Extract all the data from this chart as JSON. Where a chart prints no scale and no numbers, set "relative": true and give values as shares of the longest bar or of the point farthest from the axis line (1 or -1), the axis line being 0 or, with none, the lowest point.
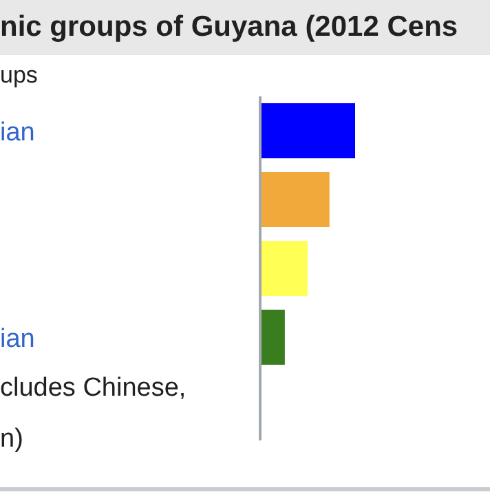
{
  "chart_data": {
    "type": "bar",
    "orientation": "horizontal",
    "relative": true,
    "title": "nic groups of Guyana (2012 Cens",
    "subtitle": "ups",
    "categories": [
      "ian",
      null,
      null,
      "ian",
      "cludes Chinese, n)"
    ],
    "values": [
      1,
      0.73,
      0.5,
      0.26,
      0.01
    ],
    "colors": [
      "#0000ff",
      "#f2a93b",
      "#ffff55",
      "#3a7d1f",
      "#e0b880"
    ]
  }
}
